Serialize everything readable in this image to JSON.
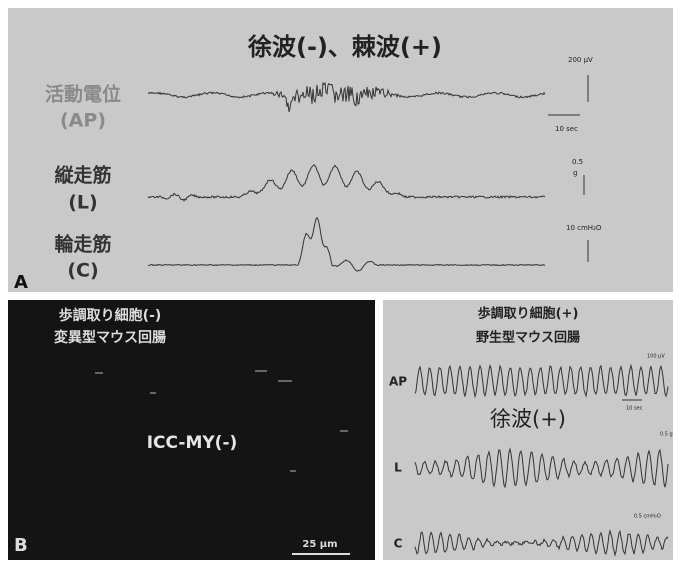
{
  "panel_a": {
    "label": "A",
    "title": "徐波(-)、棘波(+)",
    "traces": [
      {
        "name": "活動電位",
        "abbr": "(AP)"
      },
      {
        "name": "縦走筋",
        "abbr": "(L)"
      },
      {
        "name": "輪走筋",
        "abbr": "(C)"
      }
    ],
    "scales": [
      "200 μV",
      "10 sec",
      "0.5",
      "g",
      "10 cmH₂O"
    ]
  },
  "panel_b": {
    "label": "B",
    "lines": [
      "歩調取り細胞(-)",
      "変異型マウス回腸"
    ],
    "stain": "ICC-MY(-)",
    "scale": "25 μm"
  },
  "panel_c": {
    "lines": [
      "歩調取り細胞(+)",
      "野生型マウス回腸"
    ],
    "traces": [
      "AP",
      "L",
      "C"
    ],
    "title": "徐波(+)",
    "scales": [
      "100 μV",
      "10 sec",
      "0.5 g",
      "0.5 cmH₂O"
    ]
  }
}
